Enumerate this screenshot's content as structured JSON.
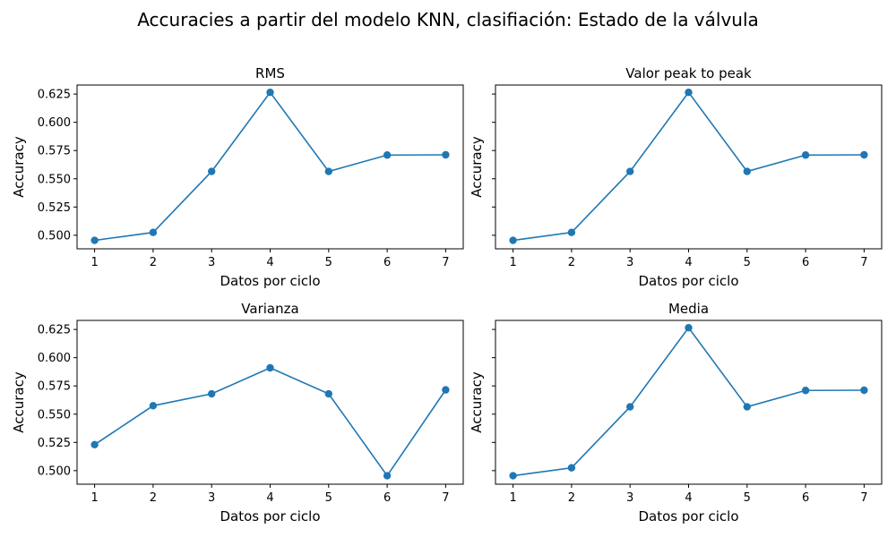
{
  "suptitle": "Accuracies a partir del modelo KNN, clasifiación: Estado de la válvula",
  "colors": {
    "series": "#1f77b4",
    "axis": "#000000",
    "background": "#ffffff"
  },
  "chart_data": [
    {
      "type": "line",
      "title": "RMS",
      "xlabel": "Datos por ciclo",
      "ylabel": "Accuracy",
      "x": [
        1,
        2,
        3,
        4,
        5,
        6,
        7
      ],
      "y": [
        0.4955,
        0.5025,
        0.5565,
        0.6265,
        0.5565,
        0.571,
        0.5712
      ],
      "xlim": [
        0.7,
        7.3
      ],
      "ylim": [
        0.488,
        0.633
      ],
      "xticks": [
        "1",
        "2",
        "3",
        "4",
        "5",
        "6",
        "7"
      ],
      "yticks": [
        "0.500",
        "0.525",
        "0.550",
        "0.575",
        "0.600",
        "0.625"
      ],
      "show_ytick_labels": true,
      "marker": "circle",
      "grid": false
    },
    {
      "type": "line",
      "title": "Valor peak to peak",
      "xlabel": "Datos por ciclo",
      "ylabel": "Accuracy",
      "x": [
        1,
        2,
        3,
        4,
        5,
        6,
        7
      ],
      "y": [
        0.4955,
        0.5025,
        0.5565,
        0.6265,
        0.5565,
        0.571,
        0.5712
      ],
      "xlim": [
        0.7,
        7.3
      ],
      "ylim": [
        0.488,
        0.633
      ],
      "xticks": [
        "1",
        "2",
        "3",
        "4",
        "5",
        "6",
        "7"
      ],
      "yticks": [
        "0.500",
        "0.525",
        "0.550",
        "0.575",
        "0.600",
        "0.625"
      ],
      "show_ytick_labels": false,
      "marker": "circle",
      "grid": false
    },
    {
      "type": "line",
      "title": "Varianza",
      "xlabel": "Datos por ciclo",
      "ylabel": "Accuracy",
      "x": [
        1,
        2,
        3,
        4,
        5,
        6,
        7
      ],
      "y": [
        0.523,
        0.5575,
        0.568,
        0.591,
        0.568,
        0.4955,
        0.5715
      ],
      "xlim": [
        0.7,
        7.3
      ],
      "ylim": [
        0.488,
        0.633
      ],
      "xticks": [
        "1",
        "2",
        "3",
        "4",
        "5",
        "6",
        "7"
      ],
      "yticks": [
        "0.500",
        "0.525",
        "0.550",
        "0.575",
        "0.600",
        "0.625"
      ],
      "show_ytick_labels": true,
      "marker": "circle",
      "grid": false
    },
    {
      "type": "line",
      "title": "Media",
      "xlabel": "Datos por ciclo",
      "ylabel": "Accuracy",
      "x": [
        1,
        2,
        3,
        4,
        5,
        6,
        7
      ],
      "y": [
        0.4955,
        0.5025,
        0.5565,
        0.6265,
        0.5565,
        0.571,
        0.5712
      ],
      "xlim": [
        0.7,
        7.3
      ],
      "ylim": [
        0.488,
        0.633
      ],
      "xticks": [
        "1",
        "2",
        "3",
        "4",
        "5",
        "6",
        "7"
      ],
      "yticks": [
        "0.500",
        "0.525",
        "0.550",
        "0.575",
        "0.600",
        "0.625"
      ],
      "show_ytick_labels": false,
      "marker": "circle",
      "grid": false
    }
  ]
}
